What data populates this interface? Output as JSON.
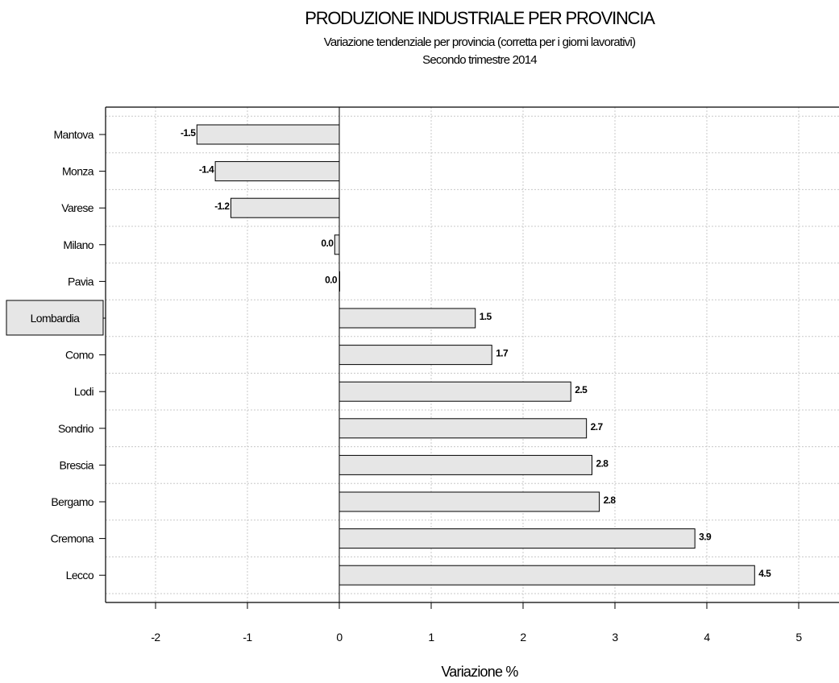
{
  "chart_data": {
    "type": "bar",
    "orientation": "horizontal",
    "title": "PRODUZIONE INDUSTRIALE PER PROVINCIA",
    "subtitle": "Variazione tendenziale per provincia (corretta per i giorni lavorativi)",
    "subtitle2": "Secondo trimestre 2014",
    "xlabel": "Variazione %",
    "ylabel": "",
    "xlim": [
      -2.5,
      5.4
    ],
    "xticks": [
      -2,
      -1,
      0,
      1,
      2,
      3,
      4,
      5
    ],
    "xtick_labels": [
      "-2",
      "-1",
      "0",
      "1",
      "2",
      "3",
      "4",
      "5"
    ],
    "grid": true,
    "highlight_category": "Lombardia",
    "bar_color": "#e6e6e6",
    "categories": [
      "Mantova",
      "Monza",
      "Varese",
      "Milano",
      "Pavia",
      "Lombardia",
      "Como",
      "Lodi",
      "Sondrio",
      "Brescia",
      "Bergamo",
      "Cremona",
      "Lecco"
    ],
    "values": [
      -1.55,
      -1.35,
      -1.18,
      -0.05,
      0.0,
      1.48,
      1.66,
      2.52,
      2.69,
      2.75,
      2.83,
      3.87,
      4.52
    ],
    "value_labels": [
      "-1.5",
      "-1.4",
      "-1.2",
      "0.0",
      "0.0",
      "1.5",
      "1.7",
      "2.5",
      "2.7",
      "2.8",
      "2.8",
      "3.9",
      "4.5"
    ]
  }
}
